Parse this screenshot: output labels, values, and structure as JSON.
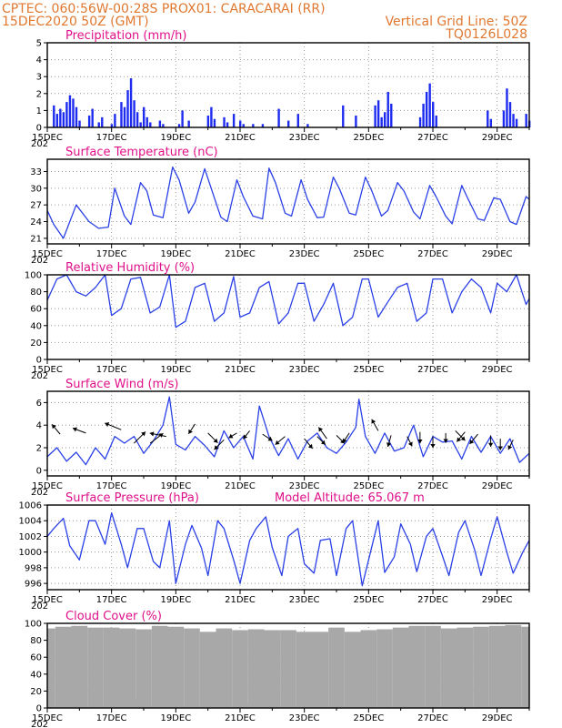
{
  "header": {
    "line1": "CPTEC:   060:56W-00:28S   PROX01: CARACARAI (RR)",
    "line2_left": "15DEC2020 50Z (GMT)",
    "line2_right": "Vertical Grid Line: 50Z",
    "line3_right": "TQ0126L028"
  },
  "x_axis": {
    "day_start": 15,
    "day_end": 30,
    "tick_labels": [
      "15DEC",
      "17DEC",
      "19DEC",
      "21DEC",
      "23DEC",
      "25DEC",
      "27DEC",
      "29DEC"
    ],
    "tick_days": [
      15,
      17,
      19,
      21,
      23,
      25,
      27,
      29
    ],
    "year_stub": "202"
  },
  "colors": {
    "line": "#2a40e6",
    "bar": "#1e2cf0",
    "cloud": "#a8a8a8",
    "title": "#e0108a",
    "header": "#e07830"
  },
  "chart_data": [
    {
      "type": "bar",
      "title": "Precipitation (mm/h)",
      "ylim": [
        0,
        5
      ],
      "yticks": [
        0,
        1,
        2,
        3,
        4,
        5
      ],
      "x": [
        15.2,
        15.3,
        15.4,
        15.5,
        15.6,
        15.7,
        15.8,
        15.9,
        16.0,
        16.3,
        16.4,
        16.6,
        16.7,
        17.0,
        17.1,
        17.3,
        17.4,
        17.5,
        17.6,
        17.7,
        17.8,
        17.9,
        18.0,
        18.1,
        18.2,
        18.5,
        18.6,
        19.1,
        19.2,
        19.4,
        20.0,
        20.1,
        20.2,
        20.5,
        20.6,
        20.8,
        21.0,
        21.1,
        21.4,
        21.7,
        22.2,
        22.5,
        22.8,
        23.1,
        24.2,
        24.6,
        25.2,
        25.3,
        25.4,
        25.5,
        25.6,
        25.7,
        26.6,
        26.7,
        26.8,
        26.9,
        27.0,
        27.1,
        28.7,
        28.8,
        29.2,
        29.3,
        29.4,
        29.5,
        29.6,
        29.9,
        30.0
      ],
      "values": [
        1.3,
        0.8,
        1.1,
        0.9,
        1.5,
        1.9,
        1.7,
        1.2,
        0.4,
        0.7,
        1.1,
        0.3,
        0.6,
        0.2,
        0.8,
        1.5,
        1.2,
        2.2,
        2.9,
        1.6,
        0.9,
        0.3,
        1.2,
        0.6,
        0.3,
        0.4,
        0.2,
        0.2,
        1.0,
        0.4,
        0.7,
        1.2,
        0.5,
        0.6,
        0.3,
        0.8,
        0.4,
        0.2,
        0.2,
        0.2,
        1.1,
        0.4,
        0.8,
        0.2,
        1.3,
        0.7,
        1.3,
        1.6,
        0.6,
        0.9,
        2.1,
        1.4,
        0.6,
        1.4,
        2.1,
        2.6,
        1.5,
        0.7,
        1.0,
        0.5,
        1.0,
        2.3,
        1.5,
        0.8,
        0.5,
        0.8,
        0.4
      ]
    },
    {
      "type": "line",
      "title": "Surface Temperature (nC)",
      "ylim": [
        20,
        35.2
      ],
      "yticks": [
        21,
        24,
        27,
        30,
        33
      ],
      "x": [
        15.0,
        15.2,
        15.5,
        15.9,
        16.3,
        16.6,
        16.9,
        17.1,
        17.4,
        17.6,
        17.9,
        18.1,
        18.3,
        18.6,
        18.9,
        19.1,
        19.4,
        19.6,
        19.9,
        20.1,
        20.4,
        20.6,
        20.9,
        21.1,
        21.4,
        21.7,
        21.9,
        22.1,
        22.4,
        22.6,
        22.9,
        23.1,
        23.4,
        23.6,
        23.9,
        24.1,
        24.4,
        24.6,
        24.9,
        25.1,
        25.4,
        25.6,
        25.9,
        26.1,
        26.4,
        26.6,
        26.9,
        27.1,
        27.4,
        27.6,
        27.9,
        28.1,
        28.4,
        28.6,
        28.9,
        29.1,
        29.4,
        29.6,
        29.9,
        30.0
      ],
      "values": [
        26,
        23.5,
        21,
        27,
        24,
        22.8,
        23,
        30,
        25,
        23.5,
        31,
        29.5,
        25.2,
        24.7,
        33.8,
        31.5,
        25.5,
        27.5,
        33.5,
        30,
        24.8,
        24,
        31.5,
        28.5,
        25,
        24.5,
        33.6,
        31,
        25.5,
        25,
        31.5,
        28,
        24.7,
        24.8,
        32,
        29.8,
        25.5,
        25.2,
        32,
        29.5,
        25,
        26,
        31,
        29.5,
        25.7,
        24.5,
        30.5,
        28.5,
        25,
        23.6,
        30.5,
        28,
        24.5,
        24.2,
        28.3,
        28,
        24,
        23.5,
        28.5,
        28
      ]
    },
    {
      "type": "line",
      "title": "Relative Humidity (%)",
      "ylim": [
        0,
        100
      ],
      "yticks": [
        0,
        20,
        40,
        60,
        80,
        100
      ],
      "x": [
        15.0,
        15.3,
        15.6,
        15.9,
        16.2,
        16.5,
        16.8,
        17.0,
        17.3,
        17.6,
        17.9,
        18.2,
        18.5,
        18.8,
        19.0,
        19.3,
        19.6,
        19.9,
        20.2,
        20.5,
        20.8,
        21.0,
        21.3,
        21.6,
        21.9,
        22.2,
        22.5,
        22.8,
        23.0,
        23.3,
        23.6,
        23.9,
        24.2,
        24.5,
        24.8,
        25.0,
        25.3,
        25.6,
        25.9,
        26.2,
        26.5,
        26.8,
        27.0,
        27.3,
        27.6,
        27.9,
        28.2,
        28.5,
        28.8,
        29.0,
        29.3,
        29.6,
        29.9,
        30.0
      ],
      "values": [
        70,
        95,
        100,
        80,
        75,
        85,
        100,
        52,
        60,
        95,
        97,
        55,
        62,
        100,
        38,
        45,
        85,
        90,
        45,
        55,
        98,
        50,
        55,
        85,
        92,
        42,
        55,
        90,
        90,
        45,
        65,
        90,
        40,
        50,
        95,
        95,
        50,
        68,
        85,
        90,
        45,
        55,
        95,
        95,
        55,
        80,
        95,
        85,
        55,
        90,
        80,
        100,
        65,
        72
      ]
    },
    {
      "type": "line",
      "title": "Surface Wind (m/s)",
      "ylim": [
        -0.5,
        7
      ],
      "yticks": [
        0,
        2,
        4,
        6
      ],
      "x": [
        15.0,
        15.3,
        15.6,
        15.9,
        16.2,
        16.5,
        16.8,
        17.1,
        17.4,
        17.7,
        18.0,
        18.3,
        18.6,
        18.8,
        19.0,
        19.3,
        19.6,
        19.9,
        20.2,
        20.5,
        20.8,
        21.1,
        21.4,
        21.6,
        21.9,
        22.2,
        22.5,
        22.8,
        23.1,
        23.4,
        23.7,
        24.0,
        24.3,
        24.6,
        24.7,
        24.9,
        25.2,
        25.5,
        25.8,
        26.1,
        26.4,
        26.7,
        27.0,
        27.3,
        27.6,
        27.9,
        28.2,
        28.5,
        28.8,
        29.1,
        29.4,
        29.7,
        30.0
      ],
      "values": [
        1.2,
        2.0,
        0.8,
        1.6,
        0.5,
        2.0,
        1.0,
        3.0,
        2.4,
        3.0,
        1.5,
        2.6,
        4.0,
        6.5,
        2.3,
        1.8,
        3.0,
        2.2,
        1.2,
        3.5,
        2.0,
        3.0,
        1.0,
        5.7,
        3.0,
        1.3,
        2.8,
        1.0,
        2.6,
        3.3,
        2.0,
        1.5,
        2.5,
        3.8,
        6.3,
        3.0,
        1.5,
        3.3,
        1.7,
        2.0,
        4.0,
        1.2,
        3.0,
        2.5,
        2.6,
        1.0,
        3.0,
        1.6,
        3.0,
        1.5,
        2.8,
        0.7,
        1.5
      ],
      "arrow_x": [
        15.4,
        16.2,
        17.3,
        17.7,
        18.2,
        18.7,
        19.6,
        20.0,
        20.5,
        20.9,
        21.3,
        21.7,
        22.4,
        23.0,
        23.4,
        23.7,
        24.0,
        24.4,
        25.3,
        25.7,
        26.2,
        26.6,
        27.0,
        27.4,
        27.7,
        28.0,
        28.4,
        28.8,
        29.1,
        29.5
      ],
      "arrow_y": [
        3.2,
        3.3,
        3.6,
        2.4,
        2.4,
        3.0,
        4.1,
        3.3,
        2.7,
        3.3,
        3.5,
        3.2,
        3.0,
        2.8,
        3.0,
        2.8,
        3.1,
        3.3,
        3.5,
        3.1,
        3.0,
        3.4,
        3.0,
        3.3,
        3.5,
        3.4,
        3.2,
        3.1,
        2.8,
        2.7
      ],
      "arrow_u": [
        -0.5,
        -0.8,
        -1.0,
        0.7,
        0.8,
        -1.0,
        -0.4,
        0.6,
        -0.6,
        -0.5,
        -0.4,
        0.6,
        -0.6,
        0.5,
        0.5,
        -0.5,
        0.5,
        -0.4,
        -0.4,
        -0.2,
        0.3,
        0.0,
        0.0,
        0.0,
        0.6,
        -0.5,
        -0.5,
        0.0,
        0.0,
        -0.3
      ],
      "arrow_v": [
        0.6,
        0.3,
        0.4,
        0.7,
        0.6,
        0.2,
        -0.6,
        -0.6,
        -0.6,
        -0.3,
        -0.5,
        -0.4,
        -0.5,
        -0.6,
        -0.5,
        0.7,
        -0.5,
        -0.6,
        0.7,
        -0.7,
        -0.6,
        -0.7,
        -0.7,
        -0.6,
        -0.6,
        -0.6,
        -0.6,
        -0.7,
        -0.7,
        -0.6
      ]
    },
    {
      "type": "line",
      "title": "Surface Pressure (hPa)",
      "subtitle": "Model Altitude: 65.067  m",
      "ylim": [
        995.2,
        1006
      ],
      "yticks": [
        996,
        998,
        1000,
        1002,
        1004,
        1006
      ],
      "x": [
        15.0,
        15.2,
        15.5,
        15.7,
        16.0,
        16.3,
        16.5,
        16.8,
        17.0,
        17.3,
        17.5,
        17.8,
        18.0,
        18.3,
        18.5,
        18.8,
        19.0,
        19.3,
        19.5,
        19.8,
        20.0,
        20.3,
        20.5,
        20.8,
        21.0,
        21.3,
        21.5,
        21.8,
        22.0,
        22.3,
        22.5,
        22.8,
        23.0,
        23.3,
        23.5,
        23.8,
        24.0,
        24.3,
        24.5,
        24.8,
        25.0,
        25.3,
        25.5,
        25.8,
        26.0,
        26.3,
        26.5,
        26.8,
        27.0,
        27.3,
        27.5,
        27.8,
        28.0,
        28.3,
        28.5,
        28.8,
        29.0,
        29.3,
        29.5,
        29.8,
        30.0
      ],
      "values": [
        1002,
        1003,
        1004.3,
        1000.8,
        999,
        1004,
        1004,
        1001,
        1005,
        1001,
        998,
        1003,
        1003,
        998.8,
        998,
        1004,
        996,
        1001,
        1003.4,
        1000.5,
        997,
        1004,
        1003,
        999,
        996,
        1001.5,
        1003,
        1004.5,
        1000.6,
        997,
        1002,
        1003,
        998.5,
        997.3,
        1001.5,
        1001.7,
        997,
        1003,
        1004,
        995.7,
        999,
        1004,
        997.4,
        999.4,
        1003.6,
        1001,
        997.5,
        1002,
        1003,
        999.5,
        997,
        1002.5,
        1004,
        1000.3,
        997,
        1001.7,
        1004.5,
        1000,
        997.3,
        1000,
        1001.5
      ]
    },
    {
      "type": "bar",
      "title": "Cloud Cover (%)",
      "ylim": [
        0,
        100
      ],
      "yticks": [
        0,
        20,
        40,
        60,
        80,
        100
      ],
      "x": [
        15.0,
        15.5,
        16.0,
        16.5,
        17.0,
        17.5,
        17.8,
        18.0,
        18.5,
        19.0,
        19.5,
        20.0,
        20.3,
        20.5,
        21.0,
        21.3,
        21.5,
        22.0,
        22.5,
        23.0,
        23.5,
        24.0,
        24.5,
        25.0,
        25.5,
        26.0,
        26.5,
        27.0,
        27.5,
        28.0,
        28.5,
        29.0,
        29.5,
        30.0
      ],
      "values": [
        94,
        96,
        97,
        95,
        95,
        94,
        12,
        93,
        97,
        96,
        94,
        90,
        6,
        94,
        92,
        5,
        93,
        92,
        92,
        90,
        90,
        95,
        90,
        92,
        93,
        95,
        97,
        97,
        94,
        95,
        96,
        97,
        98,
        96
      ]
    }
  ]
}
